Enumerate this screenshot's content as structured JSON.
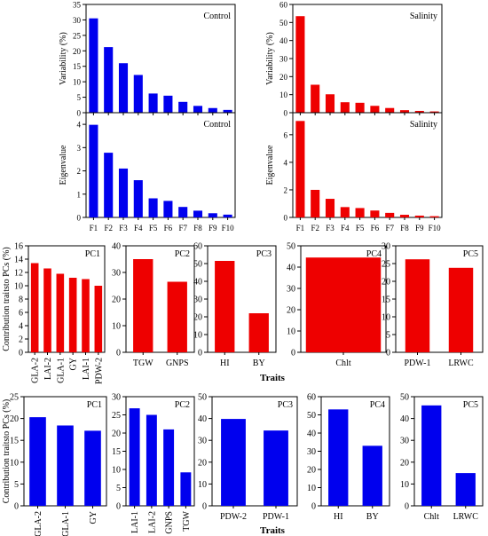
{
  "colors": {
    "blue": "#0000ee",
    "red": "#ee0000"
  },
  "shared_labels": {
    "row_traits_xlabel": "Traits"
  },
  "chart_data": [
    {
      "id": "ctrl_var",
      "type": "bar",
      "color": "red_blue:blue",
      "title": "Control",
      "ylabel": "Variability (%)",
      "xlabel": "",
      "categories": [
        "F1",
        "F2",
        "F3",
        "F4",
        "F5",
        "F6",
        "F7",
        "F8",
        "F9",
        "F10"
      ],
      "values": [
        30.5,
        21.2,
        16.0,
        12.2,
        6.2,
        5.5,
        3.5,
        2.2,
        1.5,
        0.9
      ],
      "ylim": [
        0,
        35
      ],
      "yticks": [
        0,
        5,
        10,
        15,
        20,
        25,
        30,
        35
      ],
      "show_xticklabels": false
    },
    {
      "id": "sal_var",
      "type": "bar",
      "color": "red_blue:red",
      "title": "Salinity",
      "ylabel": "Variability (%)",
      "xlabel": "",
      "categories": [
        "F1",
        "F2",
        "F3",
        "F4",
        "F5",
        "F6",
        "F7",
        "F8",
        "F9",
        "F10"
      ],
      "values": [
        53.5,
        15.5,
        10.2,
        5.8,
        5.5,
        3.8,
        2.6,
        1.4,
        1.0,
        0.7
      ],
      "ylim": [
        0,
        60
      ],
      "yticks": [
        0,
        10,
        20,
        30,
        40,
        50,
        60
      ],
      "show_xticklabels": false
    },
    {
      "id": "ctrl_eig",
      "type": "bar",
      "color": "red_blue:blue",
      "title": "Control",
      "ylabel": "Eigenvalue",
      "xlabel": "",
      "categories": [
        "F1",
        "F2",
        "F3",
        "F4",
        "F5",
        "F6",
        "F7",
        "F8",
        "F9",
        "F10"
      ],
      "values": [
        3.98,
        2.78,
        2.1,
        1.6,
        0.82,
        0.71,
        0.45,
        0.29,
        0.18,
        0.12
      ],
      "ylim": [
        0,
        4.5
      ],
      "yticks": [
        0,
        1,
        2,
        3,
        4
      ],
      "show_xticklabels": true
    },
    {
      "id": "sal_eig",
      "type": "bar",
      "color": "red_blue:red",
      "title": "Salinity",
      "ylabel": "Eigenvalue",
      "xlabel": "",
      "categories": [
        "F1",
        "F2",
        "F3",
        "F4",
        "F5",
        "F6",
        "F7",
        "F8",
        "F9",
        "F10"
      ],
      "values": [
        7.0,
        2.0,
        1.35,
        0.75,
        0.68,
        0.5,
        0.33,
        0.19,
        0.13,
        0.09
      ],
      "ylim": [
        0,
        7.6
      ],
      "yticks": [
        0,
        2,
        4,
        6
      ],
      "show_xticklabels": true
    },
    {
      "id": "r_pc1",
      "type": "bar",
      "color": "red_blue:red",
      "title": "PC1",
      "ylabel": "Contribution traitsto PCs (%)",
      "categories": [
        "GLA-2",
        "LAI-2",
        "GLA-1",
        "GY",
        "LAI-1",
        "PDW-2"
      ],
      "values": [
        13.4,
        12.6,
        11.8,
        11.2,
        11.0,
        10.0
      ],
      "ylim": [
        0,
        16
      ],
      "yticks": [
        0,
        2,
        4,
        6,
        8,
        10,
        12,
        14,
        16
      ],
      "rotate_labels": true
    },
    {
      "id": "r_pc2",
      "type": "bar",
      "color": "red_blue:red",
      "title": "PC2",
      "ylabel": "",
      "categories": [
        "TGW",
        "GNPS"
      ],
      "values": [
        35,
        26.5
      ],
      "ylim": [
        0,
        40
      ],
      "yticks": [
        0,
        10,
        20,
        30,
        40
      ],
      "rotate_labels": false
    },
    {
      "id": "r_pc3",
      "type": "bar",
      "color": "red_blue:red",
      "title": "PC3",
      "ylabel": "",
      "categories": [
        "HI",
        "BY"
      ],
      "values": [
        51.5,
        22
      ],
      "ylim": [
        0,
        60
      ],
      "yticks": [
        0,
        10,
        20,
        30,
        40,
        50,
        60
      ],
      "rotate_labels": false
    },
    {
      "id": "r_pc4",
      "type": "bar",
      "color": "red_blue:red",
      "title": "PC4",
      "ylabel": "",
      "categories": [
        "Chlt"
      ],
      "values": [
        44.5
      ],
      "ylim": [
        0,
        50
      ],
      "yticks": [
        0,
        10,
        20,
        30,
        40,
        50
      ],
      "rotate_labels": false
    },
    {
      "id": "r_pc5",
      "type": "bar",
      "color": "red_blue:red",
      "title": "PC5",
      "ylabel": "",
      "categories": [
        "PDW-1",
        "LRWC"
      ],
      "values": [
        26.2,
        23.8
      ],
      "ylim": [
        0,
        30
      ],
      "yticks": [
        0,
        5,
        10,
        15,
        20,
        25,
        30
      ],
      "rotate_labels": false
    },
    {
      "id": "b_pc1",
      "type": "bar",
      "color": "red_blue:blue",
      "title": "PC1",
      "ylabel": "Contribution traitsto PCs (%)",
      "categories": [
        "GLA-2",
        "GLA-1",
        "GY"
      ],
      "values": [
        20.3,
        18.4,
        17.2
      ],
      "ylim": [
        0,
        25
      ],
      "yticks": [
        0,
        5,
        10,
        15,
        20,
        25
      ],
      "rotate_labels": true
    },
    {
      "id": "b_pc2",
      "type": "bar",
      "color": "red_blue:blue",
      "title": "PC2",
      "ylabel": "",
      "categories": [
        "LAI-1",
        "LAI-2",
        "GNPS",
        "TGW"
      ],
      "values": [
        26.8,
        25.0,
        21.0,
        9.2
      ],
      "ylim": [
        0,
        30
      ],
      "yticks": [
        0,
        5,
        10,
        15,
        20,
        25,
        30
      ],
      "rotate_labels": true
    },
    {
      "id": "b_pc3",
      "type": "bar",
      "color": "red_blue:blue",
      "title": "PC3",
      "ylabel": "",
      "categories": [
        "PDW-2",
        "PDW-1"
      ],
      "values": [
        39.8,
        34.5
      ],
      "ylim": [
        0,
        50
      ],
      "yticks": [
        0,
        10,
        20,
        30,
        40,
        50
      ],
      "rotate_labels": false
    },
    {
      "id": "b_pc4",
      "type": "bar",
      "color": "red_blue:blue",
      "title": "PC4",
      "ylabel": "",
      "categories": [
        "HI",
        "BY"
      ],
      "values": [
        53,
        33
      ],
      "ylim": [
        0,
        60
      ],
      "yticks": [
        0,
        10,
        20,
        30,
        40,
        50,
        60
      ],
      "rotate_labels": false
    },
    {
      "id": "b_pc5",
      "type": "bar",
      "color": "red_blue:blue",
      "title": "PC5",
      "ylabel": "",
      "categories": [
        "Chlt",
        "LRWC"
      ],
      "values": [
        46,
        15
      ],
      "ylim": [
        0,
        50
      ],
      "yticks": [
        0,
        10,
        20,
        30,
        40,
        50
      ],
      "rotate_labels": false
    }
  ]
}
